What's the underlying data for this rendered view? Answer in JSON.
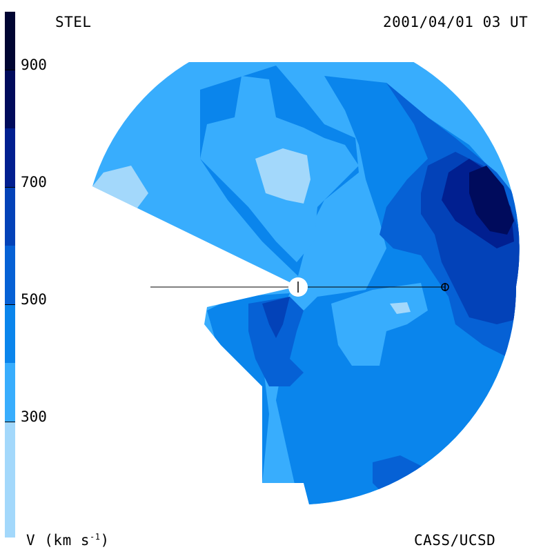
{
  "header": {
    "instrument": "STEL",
    "timestamp": "2001/04/01 03 UT"
  },
  "footer": {
    "units_label": "V (km s",
    "units_exp": "-1",
    "units_close": ")",
    "credit": "CASS/UCSD"
  },
  "colorbar": {
    "colors": [
      "#a3d8fb",
      "#38adfd",
      "#0a85ec",
      "#0661d5",
      "#0342b8",
      "#011f90",
      "#000b5c",
      "#000532"
    ],
    "ticks": [
      "900",
      "700",
      "500",
      "300"
    ]
  },
  "palette": {
    "level_1": "#a3d8fb",
    "level_2": "#38adfd",
    "level_3": "#0a85ec",
    "level_4": "#0661d5",
    "level_5": "#0342b8",
    "level_6": "#011f90",
    "level_7": "#000b5c"
  }
}
